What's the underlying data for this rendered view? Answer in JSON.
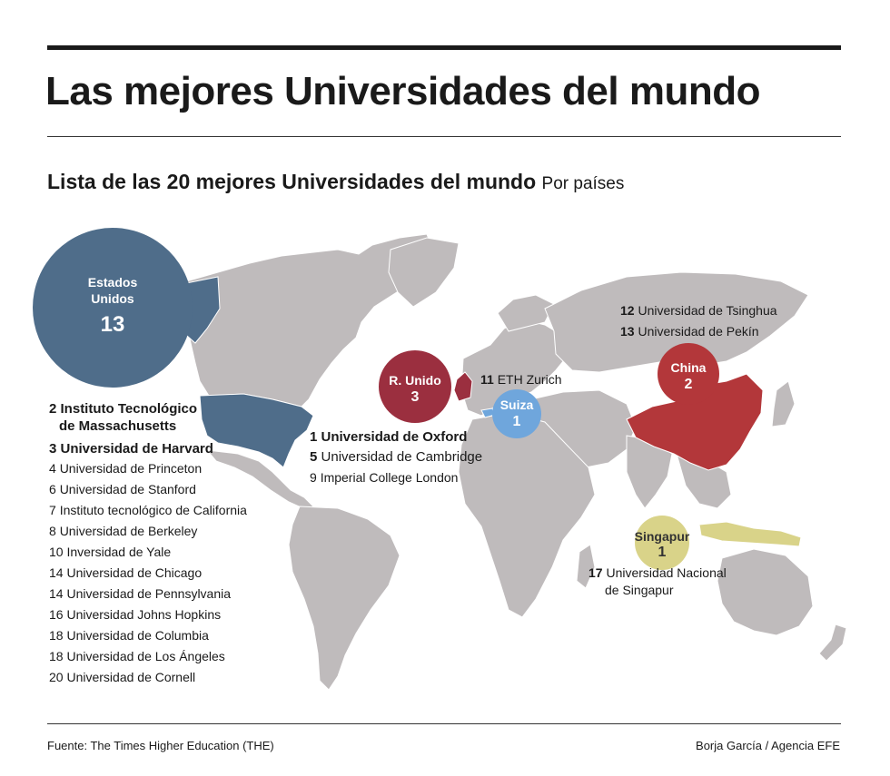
{
  "title": "Las mejores Universidades del mundo",
  "subtitle": {
    "main": "Lista de las 20 mejores Universidades del mundo",
    "suffix": "Por países"
  },
  "colors": {
    "usa": "#4f6d8a",
    "uk": "#9b2f3f",
    "switzerland": "#6fa6dc",
    "china": "#b3373a",
    "singapore": "#d9d389",
    "land": "#bfbbbc"
  },
  "countries": {
    "usa": {
      "name_line1": "Estados",
      "name_line2": "Unidos",
      "count": "13",
      "universities": [
        {
          "rank": "2",
          "name": "Instituto Tecnológico",
          "name2": "de Massachusetts"
        },
        {
          "rank": "3",
          "name": "Universidad de Harvard"
        },
        {
          "rank": "4",
          "name": "Universidad de Princeton"
        },
        {
          "rank": "6",
          "name": "Universidad de Stanford"
        },
        {
          "rank": "7",
          "name": "Instituto tecnológico de California"
        },
        {
          "rank": "8",
          "name": "Universidad de Berkeley"
        },
        {
          "rank": "10",
          "name": "Inversidad de Yale"
        },
        {
          "rank": "14",
          "name": "Universidad de Chicago"
        },
        {
          "rank": "14",
          "name": "Universidad de Pennsylvania"
        },
        {
          "rank": "16",
          "name": "Universidad Johns Hopkins"
        },
        {
          "rank": "18",
          "name": "Universidad de Columbia"
        },
        {
          "rank": "18",
          "name": "Universidad de Los Ángeles"
        },
        {
          "rank": "20",
          "name": "Universidad de Cornell"
        }
      ]
    },
    "uk": {
      "name": "R. Unido",
      "count": "3",
      "universities": [
        {
          "rank": "1",
          "name": "Universidad de Oxford"
        },
        {
          "rank": "5",
          "name": "Universidad de Cambridge"
        },
        {
          "rank": "9",
          "name": "Imperial College London"
        }
      ]
    },
    "switzerland": {
      "name": "Suiza",
      "count": "1",
      "universities": [
        {
          "rank": "11",
          "name": "ETH Zurich"
        }
      ]
    },
    "china": {
      "name": "China",
      "count": "2",
      "universities": [
        {
          "rank": "12",
          "name": "Universidad de Tsinghua"
        },
        {
          "rank": "13",
          "name": "Universidad de Pekín"
        }
      ]
    },
    "singapore": {
      "name": "Singapur",
      "count": "1",
      "universities": [
        {
          "rank": "17",
          "name": "Universidad Nacional",
          "name2": "de Singapur"
        }
      ]
    }
  },
  "footer": {
    "source": "Fuente: The Times Higher Education (THE)",
    "credit": "Borja García / Agencia EFE"
  }
}
